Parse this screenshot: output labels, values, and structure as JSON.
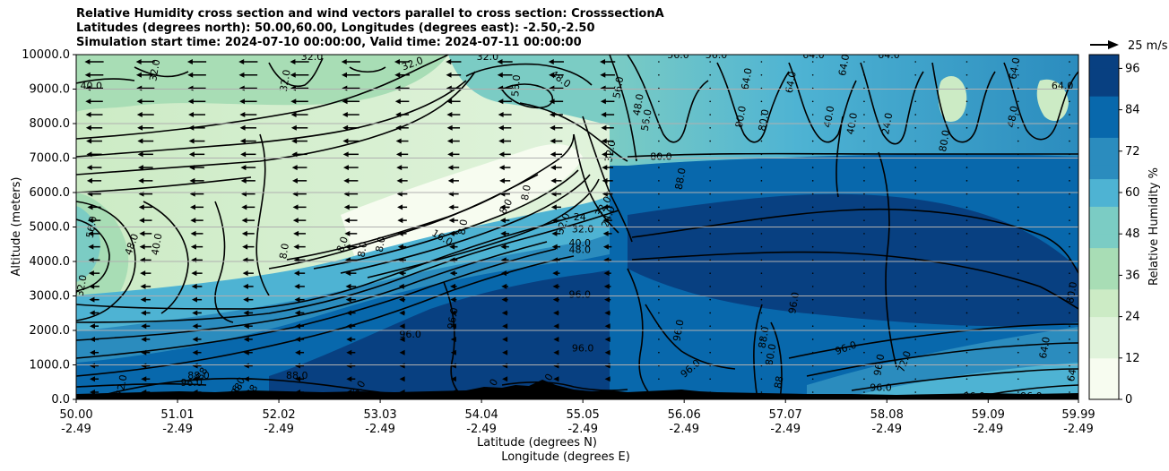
{
  "chart_data": {
    "type": "contour",
    "title_lines": [
      "Relative Humidity cross section and wind vectors parallel to cross section: CrosssectionA",
      "Latitudes (degrees north): 50.00,60.00, Longitudes (degrees east): -2.50,-2.50",
      "Simulation start time: 2024-07-10 00:00:00, Valid time: 2024-07-11 00:00:00"
    ],
    "xlabel": "Latitude (degrees N)",
    "xlabel2": "Longitude (degrees E)",
    "ylabel": "Altitude (meters)",
    "xlim": [
      50.0,
      59.99
    ],
    "ylim": [
      0,
      10000
    ],
    "x_ticks": [
      {
        "lat": "50.00",
        "lon": "-2.49",
        "v": 50.0
      },
      {
        "lat": "51.01",
        "lon": "-2.49",
        "v": 51.01
      },
      {
        "lat": "52.02",
        "lon": "-2.49",
        "v": 52.02
      },
      {
        "lat": "53.03",
        "lon": "-2.49",
        "v": 53.03
      },
      {
        "lat": "54.04",
        "lon": "-2.49",
        "v": 54.04
      },
      {
        "lat": "55.05",
        "lon": "-2.49",
        "v": 55.05
      },
      {
        "lat": "56.06",
        "lon": "-2.49",
        "v": 56.06
      },
      {
        "lat": "57.07",
        "lon": "-2.49",
        "v": 57.07
      },
      {
        "lat": "58.08",
        "lon": "-2.49",
        "v": 58.08
      },
      {
        "lat": "59.09",
        "lon": "-2.49",
        "v": 59.09
      },
      {
        "lat": "59.99",
        "lon": "-2.49",
        "v": 59.99
      }
    ],
    "y_ticks": [
      {
        "label": "0.0",
        "v": 0
      },
      {
        "label": "1000.0",
        "v": 1000
      },
      {
        "label": "2000.0",
        "v": 2000
      },
      {
        "label": "3000.0",
        "v": 3000
      },
      {
        "label": "4000.0",
        "v": 4000
      },
      {
        "label": "5000.0",
        "v": 5000
      },
      {
        "label": "6000.0",
        "v": 6000
      },
      {
        "label": "7000.0",
        "v": 7000
      },
      {
        "label": "8000.0",
        "v": 8000
      },
      {
        "label": "9000.0",
        "v": 9000
      },
      {
        "label": "10000.0",
        "v": 10000
      }
    ],
    "grid": "horizontal",
    "colorbar": {
      "label": "Relative Humidity %",
      "range": [
        0,
        100
      ],
      "ticks": [
        {
          "label": "0",
          "v": 0
        },
        {
          "label": "12",
          "v": 12
        },
        {
          "label": "24",
          "v": 24
        },
        {
          "label": "36",
          "v": 36
        },
        {
          "label": "48",
          "v": 48
        },
        {
          "label": "60",
          "v": 60
        },
        {
          "label": "72",
          "v": 72
        },
        {
          "label": "84",
          "v": 84
        },
        {
          "label": "96",
          "v": 96
        }
      ],
      "colors": [
        "#f7fcf0",
        "#e0f3db",
        "#ccebc5",
        "#a8ddb5",
        "#7bccc4",
        "#4eb3d3",
        "#2b8cbe",
        "#0868ac",
        "#084081"
      ]
    },
    "quiver_key": {
      "label": "25 m/s",
      "value": 25
    },
    "contour_labels": [
      {
        "text": "40.0",
        "x": 50.15,
        "y": 9100,
        "r": 0
      },
      {
        "text": "32.0",
        "x": 50.78,
        "y": 9550,
        "r": -80
      },
      {
        "text": "32.0",
        "x": 52.08,
        "y": 9250,
        "r": -80
      },
      {
        "text": "32.0",
        "x": 52.35,
        "y": 9950,
        "r": 0
      },
      {
        "text": "32.0",
        "x": 53.35,
        "y": 9750,
        "r": -20
      },
      {
        "text": "32.0",
        "x": 54.1,
        "y": 9950,
        "r": 0
      },
      {
        "text": "56.0",
        "x": 54.38,
        "y": 9100,
        "r": -85
      },
      {
        "text": "48.0",
        "x": 54.83,
        "y": 9300,
        "r": 35
      },
      {
        "text": "56.0",
        "x": 55.4,
        "y": 9050,
        "r": -80
      },
      {
        "text": "48.0",
        "x": 55.6,
        "y": 8550,
        "r": -80
      },
      {
        "text": "56.0",
        "x": 55.68,
        "y": 8100,
        "r": -80
      },
      {
        "text": "56.0",
        "x": 56.0,
        "y": 10000,
        "r": 0
      },
      {
        "text": "56.0",
        "x": 56.38,
        "y": 10000,
        "r": 0
      },
      {
        "text": "64.0",
        "x": 56.68,
        "y": 9300,
        "r": -80
      },
      {
        "text": "64.0",
        "x": 57.12,
        "y": 9200,
        "r": -80
      },
      {
        "text": "64.0",
        "x": 57.35,
        "y": 10000,
        "r": 0
      },
      {
        "text": "64.0",
        "x": 57.65,
        "y": 9700,
        "r": -80
      },
      {
        "text": "64.0",
        "x": 58.1,
        "y": 10000,
        "r": 0
      },
      {
        "text": "40.0",
        "x": 57.5,
        "y": 8200,
        "r": -80
      },
      {
        "text": "40.0",
        "x": 57.73,
        "y": 8000,
        "r": -80
      },
      {
        "text": "24.0",
        "x": 58.08,
        "y": 8000,
        "r": -80
      },
      {
        "text": "80.0",
        "x": 58.65,
        "y": 7500,
        "r": -80
      },
      {
        "text": "64.0",
        "x": 59.35,
        "y": 9600,
        "r": -80
      },
      {
        "text": "64.0",
        "x": 59.83,
        "y": 9100,
        "r": 0
      },
      {
        "text": "80.0",
        "x": 56.62,
        "y": 8200,
        "r": -80
      },
      {
        "text": "80.0",
        "x": 56.85,
        "y": 8100,
        "r": -80
      },
      {
        "text": "48.0",
        "x": 59.33,
        "y": 8200,
        "r": -80
      },
      {
        "text": "80.0",
        "x": 55.83,
        "y": 7050,
        "r": 0
      },
      {
        "text": "88.0",
        "x": 56.02,
        "y": 6400,
        "r": -80
      },
      {
        "text": "32.0",
        "x": 55.32,
        "y": 7200,
        "r": -80
      },
      {
        "text": "32.0",
        "x": 55.25,
        "y": 5600,
        "r": -60
      },
      {
        "text": "24.0",
        "x": 55.3,
        "y": 5300,
        "r": -70
      },
      {
        "text": "8.0",
        "x": 54.48,
        "y": 6000,
        "r": -80
      },
      {
        "text": "8.0",
        "x": 54.28,
        "y": 5600,
        "r": -60
      },
      {
        "text": "8.0",
        "x": 53.85,
        "y": 5000,
        "r": -80
      },
      {
        "text": "16.0",
        "x": 53.65,
        "y": 4700,
        "r": 30
      },
      {
        "text": "24",
        "x": 55.02,
        "y": 5300,
        "r": 0
      },
      {
        "text": "32.0",
        "x": 54.85,
        "y": 5100,
        "r": -70
      },
      {
        "text": "32.0",
        "x": 55.05,
        "y": 4950,
        "r": 0
      },
      {
        "text": "40.0",
        "x": 55.02,
        "y": 4550,
        "r": 0
      },
      {
        "text": "48.0",
        "x": 55.02,
        "y": 4350,
        "r": 0
      },
      {
        "text": "8.0",
        "x": 52.07,
        "y": 4300,
        "r": -80
      },
      {
        "text": "8.0",
        "x": 52.65,
        "y": 4500,
        "r": -70
      },
      {
        "text": "8.0",
        "x": 52.85,
        "y": 4350,
        "r": -80
      },
      {
        "text": "8.0",
        "x": 53.03,
        "y": 4500,
        "r": -80
      },
      {
        "text": "56.0",
        "x": 50.15,
        "y": 5000,
        "r": -80
      },
      {
        "text": "48.0",
        "x": 50.55,
        "y": 4500,
        "r": -70
      },
      {
        "text": "40.0",
        "x": 50.8,
        "y": 4500,
        "r": -80
      },
      {
        "text": "32.0",
        "x": 50.05,
        "y": 3300,
        "r": -80
      },
      {
        "text": "96.0",
        "x": 55.02,
        "y": 3050,
        "r": 0
      },
      {
        "text": "96.0",
        "x": 53.75,
        "y": 2350,
        "r": -80
      },
      {
        "text": "96.0",
        "x": 53.33,
        "y": 1900,
        "r": 0
      },
      {
        "text": "96.0",
        "x": 55.05,
        "y": 1500,
        "r": 0
      },
      {
        "text": "96.0",
        "x": 56.0,
        "y": 2000,
        "r": -80
      },
      {
        "text": "96.0",
        "x": 56.12,
        "y": 900,
        "r": -40
      },
      {
        "text": "96.0",
        "x": 57.15,
        "y": 2800,
        "r": -80
      },
      {
        "text": "96.0",
        "x": 57.67,
        "y": 1500,
        "r": -20
      },
      {
        "text": "88.0",
        "x": 56.85,
        "y": 1800,
        "r": -80
      },
      {
        "text": "80.0",
        "x": 56.92,
        "y": 1300,
        "r": -80
      },
      {
        "text": "88.0",
        "x": 51.22,
        "y": 700,
        "r": 0
      },
      {
        "text": "96.0",
        "x": 51.15,
        "y": 500,
        "r": 0
      },
      {
        "text": "88",
        "x": 51.25,
        "y": 750,
        "r": -60
      },
      {
        "text": "88",
        "x": 51.6,
        "y": 300,
        "r": -60
      },
      {
        "text": "88",
        "x": 51.75,
        "y": 250,
        "r": -60
      },
      {
        "text": "88.0",
        "x": 52.2,
        "y": 700,
        "r": 0
      },
      {
        "text": "96.0",
        "x": 51.6,
        "y": 350,
        "r": -60
      },
      {
        "text": "96.0",
        "x": 52.8,
        "y": 250,
        "r": -60
      },
      {
        "text": "72.0",
        "x": 50.45,
        "y": 400,
        "r": -80
      },
      {
        "text": "96.0",
        "x": 54.12,
        "y": 300,
        "r": -60
      },
      {
        "text": "96.0",
        "x": 54.67,
        "y": 450,
        "r": -60
      },
      {
        "text": "88",
        "x": 57.0,
        "y": 500,
        "r": -80
      },
      {
        "text": "96.0",
        "x": 58.0,
        "y": 1000,
        "r": -80
      },
      {
        "text": "72.0",
        "x": 58.25,
        "y": 1100,
        "r": -70
      },
      {
        "text": "96.0",
        "x": 58.02,
        "y": 350,
        "r": 0
      },
      {
        "text": "96.0",
        "x": 58.95,
        "y": 100,
        "r": 0
      },
      {
        "text": "96.0",
        "x": 59.52,
        "y": 100,
        "r": 0
      },
      {
        "text": "64.0",
        "x": 59.65,
        "y": 1500,
        "r": -80
      },
      {
        "text": "64",
        "x": 59.92,
        "y": 700,
        "r": -80
      },
      {
        "text": "80.0",
        "x": 59.92,
        "y": 3100,
        "r": -80
      }
    ]
  }
}
